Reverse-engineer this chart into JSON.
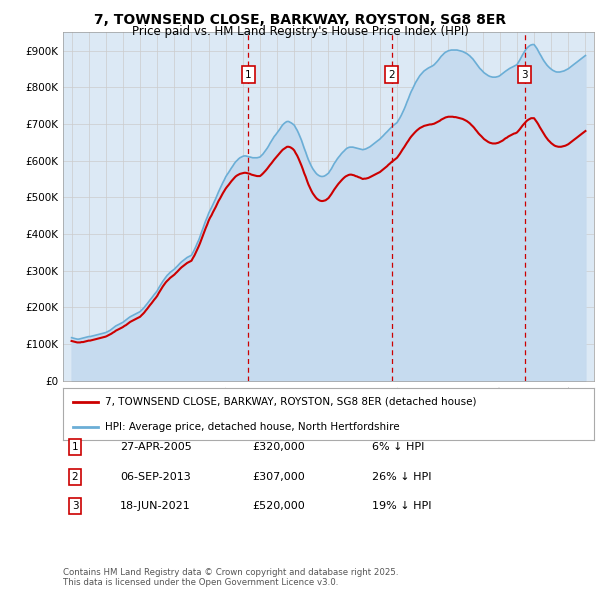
{
  "title": "7, TOWNSEND CLOSE, BARKWAY, ROYSTON, SG8 8ER",
  "subtitle": "Price paid vs. HM Land Registry's House Price Index (HPI)",
  "plot_bg_color": "#dce9f5",
  "ylim": [
    0,
    950000
  ],
  "yticks": [
    0,
    100000,
    200000,
    300000,
    400000,
    500000,
    600000,
    700000,
    800000,
    900000
  ],
  "ytick_labels": [
    "£0",
    "£100K",
    "£200K",
    "£300K",
    "£400K",
    "£500K",
    "£600K",
    "£700K",
    "£800K",
    "£900K"
  ],
  "legend_line1": "7, TOWNSEND CLOSE, BARKWAY, ROYSTON, SG8 8ER (detached house)",
  "legend_line2": "HPI: Average price, detached house, North Hertfordshire",
  "footnote": "Contains HM Land Registry data © Crown copyright and database right 2025.\nThis data is licensed under the Open Government Licence v3.0.",
  "transactions": [
    {
      "num": 1,
      "date": "27-APR-2005",
      "price": "£320,000",
      "pct": "6% ↓ HPI",
      "year": 2005.32
    },
    {
      "num": 2,
      "date": "06-SEP-2013",
      "price": "£307,000",
      "pct": "26% ↓ HPI",
      "year": 2013.68
    },
    {
      "num": 3,
      "date": "18-JUN-2021",
      "price": "£520,000",
      "pct": "19% ↓ HPI",
      "year": 2021.46
    }
  ],
  "hpi_x": [
    1995.0,
    1995.08,
    1995.17,
    1995.25,
    1995.33,
    1995.42,
    1995.5,
    1995.58,
    1995.67,
    1995.75,
    1995.83,
    1995.92,
    1996.0,
    1996.08,
    1996.17,
    1996.25,
    1996.33,
    1996.42,
    1996.5,
    1996.58,
    1996.67,
    1996.75,
    1996.83,
    1996.92,
    1997.0,
    1997.08,
    1997.17,
    1997.25,
    1997.33,
    1997.42,
    1997.5,
    1997.58,
    1997.67,
    1997.75,
    1997.83,
    1997.92,
    1998.0,
    1998.08,
    1998.17,
    1998.25,
    1998.33,
    1998.42,
    1998.5,
    1998.58,
    1998.67,
    1998.75,
    1998.83,
    1998.92,
    1999.0,
    1999.08,
    1999.17,
    1999.25,
    1999.33,
    1999.42,
    1999.5,
    1999.58,
    1999.67,
    1999.75,
    1999.83,
    1999.92,
    2000.0,
    2000.08,
    2000.17,
    2000.25,
    2000.33,
    2000.42,
    2000.5,
    2000.58,
    2000.67,
    2000.75,
    2000.83,
    2000.92,
    2001.0,
    2001.08,
    2001.17,
    2001.25,
    2001.33,
    2001.42,
    2001.5,
    2001.58,
    2001.67,
    2001.75,
    2001.83,
    2001.92,
    2002.0,
    2002.08,
    2002.17,
    2002.25,
    2002.33,
    2002.42,
    2002.5,
    2002.58,
    2002.67,
    2002.75,
    2002.83,
    2002.92,
    2003.0,
    2003.08,
    2003.17,
    2003.25,
    2003.33,
    2003.42,
    2003.5,
    2003.58,
    2003.67,
    2003.75,
    2003.83,
    2003.92,
    2004.0,
    2004.08,
    2004.17,
    2004.25,
    2004.33,
    2004.42,
    2004.5,
    2004.58,
    2004.67,
    2004.75,
    2004.83,
    2004.92,
    2005.0,
    2005.08,
    2005.17,
    2005.25,
    2005.33,
    2005.42,
    2005.5,
    2005.58,
    2005.67,
    2005.75,
    2005.83,
    2005.92,
    2006.0,
    2006.08,
    2006.17,
    2006.25,
    2006.33,
    2006.42,
    2006.5,
    2006.58,
    2006.67,
    2006.75,
    2006.83,
    2006.92,
    2007.0,
    2007.08,
    2007.17,
    2007.25,
    2007.33,
    2007.42,
    2007.5,
    2007.58,
    2007.67,
    2007.75,
    2007.83,
    2007.92,
    2008.0,
    2008.08,
    2008.17,
    2008.25,
    2008.33,
    2008.42,
    2008.5,
    2008.58,
    2008.67,
    2008.75,
    2008.83,
    2008.92,
    2009.0,
    2009.08,
    2009.17,
    2009.25,
    2009.33,
    2009.42,
    2009.5,
    2009.58,
    2009.67,
    2009.75,
    2009.83,
    2009.92,
    2010.0,
    2010.08,
    2010.17,
    2010.25,
    2010.33,
    2010.42,
    2010.5,
    2010.58,
    2010.67,
    2010.75,
    2010.83,
    2010.92,
    2011.0,
    2011.08,
    2011.17,
    2011.25,
    2011.33,
    2011.42,
    2011.5,
    2011.58,
    2011.67,
    2011.75,
    2011.83,
    2011.92,
    2012.0,
    2012.08,
    2012.17,
    2012.25,
    2012.33,
    2012.42,
    2012.5,
    2012.58,
    2012.67,
    2012.75,
    2012.83,
    2012.92,
    2013.0,
    2013.08,
    2013.17,
    2013.25,
    2013.33,
    2013.42,
    2013.5,
    2013.58,
    2013.67,
    2013.75,
    2013.83,
    2013.92,
    2014.0,
    2014.08,
    2014.17,
    2014.25,
    2014.33,
    2014.42,
    2014.5,
    2014.58,
    2014.67,
    2014.75,
    2014.83,
    2014.92,
    2015.0,
    2015.08,
    2015.17,
    2015.25,
    2015.33,
    2015.42,
    2015.5,
    2015.58,
    2015.67,
    2015.75,
    2015.83,
    2015.92,
    2016.0,
    2016.08,
    2016.17,
    2016.25,
    2016.33,
    2016.42,
    2016.5,
    2016.58,
    2016.67,
    2016.75,
    2016.83,
    2016.92,
    2017.0,
    2017.08,
    2017.17,
    2017.25,
    2017.33,
    2017.42,
    2017.5,
    2017.58,
    2017.67,
    2017.75,
    2017.83,
    2017.92,
    2018.0,
    2018.08,
    2018.17,
    2018.25,
    2018.33,
    2018.42,
    2018.5,
    2018.58,
    2018.67,
    2018.75,
    2018.83,
    2018.92,
    2019.0,
    2019.08,
    2019.17,
    2019.25,
    2019.33,
    2019.42,
    2019.5,
    2019.58,
    2019.67,
    2019.75,
    2019.83,
    2019.92,
    2020.0,
    2020.08,
    2020.17,
    2020.25,
    2020.33,
    2020.42,
    2020.5,
    2020.58,
    2020.67,
    2020.75,
    2020.83,
    2020.92,
    2021.0,
    2021.08,
    2021.17,
    2021.25,
    2021.33,
    2021.42,
    2021.5,
    2021.58,
    2021.67,
    2021.75,
    2021.83,
    2021.92,
    2022.0,
    2022.08,
    2022.17,
    2022.25,
    2022.33,
    2022.42,
    2022.5,
    2022.58,
    2022.67,
    2022.75,
    2022.83,
    2022.92,
    2023.0,
    2023.08,
    2023.17,
    2023.25,
    2023.33,
    2023.42,
    2023.5,
    2023.58,
    2023.67,
    2023.75,
    2023.83,
    2023.92,
    2024.0,
    2024.08,
    2024.17,
    2024.25,
    2024.33,
    2024.42,
    2024.5,
    2024.58,
    2024.67,
    2024.75,
    2024.83,
    2024.92,
    2025.0
  ],
  "hpi_y": [
    117000,
    116000,
    115000,
    114000,
    113000,
    113000,
    114000,
    115000,
    116000,
    117000,
    118000,
    119000,
    120000,
    120000,
    121000,
    122000,
    123000,
    124000,
    125000,
    126000,
    127000,
    128000,
    129000,
    130000,
    131000,
    133000,
    135000,
    137000,
    140000,
    143000,
    146000,
    149000,
    151000,
    153000,
    155000,
    157000,
    159000,
    162000,
    165000,
    168000,
    171000,
    174000,
    176000,
    178000,
    180000,
    182000,
    184000,
    186000,
    188000,
    192000,
    196000,
    200000,
    205000,
    210000,
    215000,
    220000,
    225000,
    230000,
    235000,
    240000,
    245000,
    252000,
    259000,
    265000,
    271000,
    277000,
    282000,
    287000,
    291000,
    295000,
    298000,
    301000,
    304000,
    308000,
    312000,
    316000,
    320000,
    324000,
    327000,
    330000,
    333000,
    336000,
    338000,
    340000,
    342000,
    349000,
    357000,
    365000,
    374000,
    383000,
    393000,
    404000,
    415000,
    426000,
    436000,
    446000,
    456000,
    464000,
    472000,
    480000,
    488000,
    497000,
    506000,
    515000,
    524000,
    532000,
    540000,
    548000,
    556000,
    562000,
    568000,
    574000,
    580000,
    586000,
    592000,
    597000,
    601000,
    605000,
    608000,
    610000,
    612000,
    613000,
    613000,
    612000,
    611000,
    610000,
    609000,
    608000,
    608000,
    608000,
    608000,
    609000,
    610000,
    614000,
    618000,
    623000,
    628000,
    634000,
    640000,
    647000,
    654000,
    660000,
    666000,
    671000,
    676000,
    681000,
    687000,
    693000,
    698000,
    702000,
    705000,
    707000,
    707000,
    705000,
    703000,
    700000,
    697000,
    690000,
    683000,
    675000,
    666000,
    656000,
    645000,
    634000,
    623000,
    612000,
    602000,
    593000,
    585000,
    578000,
    572000,
    567000,
    563000,
    560000,
    558000,
    557000,
    557000,
    558000,
    560000,
    563000,
    566000,
    572000,
    578000,
    585000,
    592000,
    598000,
    604000,
    609000,
    614000,
    619000,
    623000,
    627000,
    631000,
    634000,
    636000,
    637000,
    637000,
    637000,
    636000,
    635000,
    634000,
    633000,
    632000,
    631000,
    630000,
    631000,
    632000,
    634000,
    636000,
    638000,
    641000,
    644000,
    647000,
    650000,
    653000,
    656000,
    659000,
    663000,
    667000,
    671000,
    675000,
    679000,
    683000,
    687000,
    691000,
    695000,
    698000,
    701000,
    704000,
    710000,
    717000,
    724000,
    732000,
    741000,
    750000,
    760000,
    770000,
    780000,
    789000,
    797000,
    805000,
    813000,
    820000,
    826000,
    832000,
    837000,
    841000,
    845000,
    848000,
    851000,
    853000,
    855000,
    857000,
    859000,
    862000,
    866000,
    870000,
    875000,
    880000,
    885000,
    889000,
    893000,
    896000,
    898000,
    900000,
    901000,
    902000,
    902000,
    902000,
    902000,
    902000,
    901000,
    900000,
    899000,
    898000,
    896000,
    894000,
    892000,
    889000,
    886000,
    882000,
    878000,
    873000,
    868000,
    862000,
    857000,
    852000,
    848000,
    844000,
    840000,
    837000,
    834000,
    832000,
    830000,
    829000,
    828000,
    828000,
    828000,
    829000,
    830000,
    832000,
    835000,
    838000,
    841000,
    844000,
    847000,
    850000,
    852000,
    854000,
    856000,
    858000,
    860000,
    862000,
    868000,
    875000,
    882000,
    889000,
    896000,
    902000,
    907000,
    911000,
    914000,
    916000,
    917000,
    917000,
    912000,
    906000,
    899000,
    892000,
    885000,
    878000,
    872000,
    866000,
    861000,
    857000,
    853000,
    850000,
    847000,
    845000,
    843000,
    842000,
    842000,
    842000,
    843000,
    844000,
    845000,
    847000,
    849000,
    851000,
    854000,
    857000,
    860000,
    863000,
    866000,
    869000,
    872000,
    875000,
    878000,
    881000,
    884000,
    887000
  ],
  "price_x": [
    1995.0,
    1995.08,
    1995.17,
    1995.25,
    1995.33,
    1995.42,
    1995.5,
    1995.58,
    1995.67,
    1995.75,
    1995.83,
    1995.92,
    1996.0,
    1996.08,
    1996.17,
    1996.25,
    1996.33,
    1996.42,
    1996.5,
    1996.58,
    1996.67,
    1996.75,
    1996.83,
    1996.92,
    1997.0,
    1997.08,
    1997.17,
    1997.25,
    1997.33,
    1997.42,
    1997.5,
    1997.58,
    1997.67,
    1997.75,
    1997.83,
    1997.92,
    1998.0,
    1998.08,
    1998.17,
    1998.25,
    1998.33,
    1998.42,
    1998.5,
    1998.58,
    1998.67,
    1998.75,
    1998.83,
    1998.92,
    1999.0,
    1999.08,
    1999.17,
    1999.25,
    1999.33,
    1999.42,
    1999.5,
    1999.58,
    1999.67,
    1999.75,
    1999.83,
    1999.92,
    2000.0,
    2000.08,
    2000.17,
    2000.25,
    2000.33,
    2000.42,
    2000.5,
    2000.58,
    2000.67,
    2000.75,
    2000.83,
    2000.92,
    2001.0,
    2001.08,
    2001.17,
    2001.25,
    2001.33,
    2001.42,
    2001.5,
    2001.58,
    2001.67,
    2001.75,
    2001.83,
    2001.92,
    2002.0,
    2002.08,
    2002.17,
    2002.25,
    2002.33,
    2002.42,
    2002.5,
    2002.58,
    2002.67,
    2002.75,
    2002.83,
    2002.92,
    2003.0,
    2003.08,
    2003.17,
    2003.25,
    2003.33,
    2003.42,
    2003.5,
    2003.58,
    2003.67,
    2003.75,
    2003.83,
    2003.92,
    2004.0,
    2004.08,
    2004.17,
    2004.25,
    2004.33,
    2004.42,
    2004.5,
    2004.58,
    2004.67,
    2004.75,
    2004.83,
    2004.92,
    2005.0,
    2005.08,
    2005.17,
    2005.25,
    2005.33,
    2005.42,
    2005.5,
    2005.58,
    2005.67,
    2005.75,
    2005.83,
    2005.92,
    2006.0,
    2006.08,
    2006.17,
    2006.25,
    2006.33,
    2006.42,
    2006.5,
    2006.58,
    2006.67,
    2006.75,
    2006.83,
    2006.92,
    2007.0,
    2007.08,
    2007.17,
    2007.25,
    2007.33,
    2007.42,
    2007.5,
    2007.58,
    2007.67,
    2007.75,
    2007.83,
    2007.92,
    2008.0,
    2008.08,
    2008.17,
    2008.25,
    2008.33,
    2008.42,
    2008.5,
    2008.58,
    2008.67,
    2008.75,
    2008.83,
    2008.92,
    2009.0,
    2009.08,
    2009.17,
    2009.25,
    2009.33,
    2009.42,
    2009.5,
    2009.58,
    2009.67,
    2009.75,
    2009.83,
    2009.92,
    2010.0,
    2010.08,
    2010.17,
    2010.25,
    2010.33,
    2010.42,
    2010.5,
    2010.58,
    2010.67,
    2010.75,
    2010.83,
    2010.92,
    2011.0,
    2011.08,
    2011.17,
    2011.25,
    2011.33,
    2011.42,
    2011.5,
    2011.58,
    2011.67,
    2011.75,
    2011.83,
    2011.92,
    2012.0,
    2012.08,
    2012.17,
    2012.25,
    2012.33,
    2012.42,
    2012.5,
    2012.58,
    2012.67,
    2012.75,
    2012.83,
    2012.92,
    2013.0,
    2013.08,
    2013.17,
    2013.25,
    2013.33,
    2013.42,
    2013.5,
    2013.58,
    2013.67,
    2013.75,
    2013.83,
    2013.92,
    2014.0,
    2014.08,
    2014.17,
    2014.25,
    2014.33,
    2014.42,
    2014.5,
    2014.58,
    2014.67,
    2014.75,
    2014.83,
    2014.92,
    2015.0,
    2015.08,
    2015.17,
    2015.25,
    2015.33,
    2015.42,
    2015.5,
    2015.58,
    2015.67,
    2015.75,
    2015.83,
    2015.92,
    2016.0,
    2016.08,
    2016.17,
    2016.25,
    2016.33,
    2016.42,
    2016.5,
    2016.58,
    2016.67,
    2016.75,
    2016.83,
    2016.92,
    2017.0,
    2017.08,
    2017.17,
    2017.25,
    2017.33,
    2017.42,
    2017.5,
    2017.58,
    2017.67,
    2017.75,
    2017.83,
    2017.92,
    2018.0,
    2018.08,
    2018.17,
    2018.25,
    2018.33,
    2018.42,
    2018.5,
    2018.58,
    2018.67,
    2018.75,
    2018.83,
    2018.92,
    2019.0,
    2019.08,
    2019.17,
    2019.25,
    2019.33,
    2019.42,
    2019.5,
    2019.58,
    2019.67,
    2019.75,
    2019.83,
    2019.92,
    2020.0,
    2020.08,
    2020.17,
    2020.25,
    2020.33,
    2020.42,
    2020.5,
    2020.58,
    2020.67,
    2020.75,
    2020.83,
    2020.92,
    2021.0,
    2021.08,
    2021.17,
    2021.25,
    2021.33,
    2021.42,
    2021.5,
    2021.58,
    2021.67,
    2021.75,
    2021.83,
    2021.92,
    2022.0,
    2022.08,
    2022.17,
    2022.25,
    2022.33,
    2022.42,
    2022.5,
    2022.58,
    2022.67,
    2022.75,
    2022.83,
    2022.92,
    2023.0,
    2023.08,
    2023.17,
    2023.25,
    2023.33,
    2023.42,
    2023.5,
    2023.58,
    2023.67,
    2023.75,
    2023.83,
    2023.92,
    2024.0,
    2024.08,
    2024.17,
    2024.25,
    2024.33,
    2024.42,
    2024.5,
    2024.58,
    2024.67,
    2024.75,
    2024.83,
    2024.92,
    2025.0
  ],
  "price_y": [
    108000,
    107000,
    106000,
    105000,
    104000,
    104000,
    104000,
    105000,
    105000,
    106000,
    107000,
    108000,
    109000,
    109000,
    110000,
    111000,
    112000,
    113000,
    114000,
    115000,
    116000,
    117000,
    118000,
    119000,
    120000,
    122000,
    124000,
    126000,
    128000,
    131000,
    133000,
    136000,
    138000,
    140000,
    142000,
    144000,
    146000,
    149000,
    151000,
    154000,
    157000,
    160000,
    162000,
    164000,
    166000,
    168000,
    170000,
    172000,
    174000,
    178000,
    182000,
    186000,
    191000,
    196000,
    201000,
    206000,
    211000,
    216000,
    221000,
    226000,
    231000,
    238000,
    245000,
    251000,
    257000,
    263000,
    268000,
    272000,
    276000,
    280000,
    283000,
    286000,
    289000,
    293000,
    297000,
    301000,
    305000,
    309000,
    312000,
    315000,
    318000,
    321000,
    323000,
    325000,
    327000,
    334000,
    341000,
    349000,
    357000,
    366000,
    375000,
    385000,
    396000,
    406000,
    416000,
    426000,
    436000,
    444000,
    451000,
    459000,
    466000,
    474000,
    482000,
    490000,
    497000,
    504000,
    511000,
    518000,
    524000,
    529000,
    534000,
    539000,
    544000,
    549000,
    553000,
    557000,
    560000,
    562000,
    564000,
    565000,
    566000,
    567000,
    567000,
    566000,
    565000,
    564000,
    562000,
    561000,
    560000,
    559000,
    558000,
    558000,
    558000,
    561000,
    565000,
    569000,
    573000,
    578000,
    583000,
    588000,
    593000,
    598000,
    603000,
    608000,
    612000,
    617000,
    622000,
    626000,
    630000,
    633000,
    636000,
    638000,
    638000,
    637000,
    635000,
    632000,
    628000,
    621000,
    614000,
    606000,
    597000,
    587000,
    577000,
    566000,
    556000,
    545000,
    535000,
    526000,
    518000,
    511000,
    505000,
    500000,
    496000,
    493000,
    491000,
    490000,
    490000,
    491000,
    492000,
    495000,
    498000,
    503000,
    509000,
    515000,
    521000,
    527000,
    532000,
    537000,
    542000,
    546000,
    550000,
    554000,
    557000,
    559000,
    561000,
    562000,
    562000,
    561000,
    560000,
    558000,
    557000,
    555000,
    554000,
    552000,
    550000,
    551000,
    551000,
    552000,
    553000,
    555000,
    557000,
    559000,
    561000,
    563000,
    565000,
    567000,
    569000,
    572000,
    575000,
    578000,
    581000,
    585000,
    589000,
    592000,
    596000,
    599000,
    602000,
    605000,
    608000,
    613000,
    619000,
    625000,
    631000,
    637000,
    643000,
    649000,
    655000,
    661000,
    666000,
    671000,
    675000,
    679000,
    683000,
    686000,
    689000,
    691000,
    693000,
    695000,
    696000,
    697000,
    698000,
    699000,
    699000,
    700000,
    701000,
    703000,
    705000,
    707000,
    709000,
    712000,
    714000,
    716000,
    718000,
    719000,
    720000,
    720000,
    720000,
    720000,
    719000,
    719000,
    718000,
    717000,
    716000,
    715000,
    714000,
    712000,
    710000,
    708000,
    705000,
    702000,
    698000,
    694000,
    690000,
    685000,
    680000,
    675000,
    671000,
    667000,
    663000,
    659000,
    656000,
    653000,
    651000,
    649000,
    648000,
    647000,
    647000,
    647000,
    648000,
    649000,
    651000,
    653000,
    655000,
    658000,
    661000,
    663000,
    666000,
    668000,
    670000,
    672000,
    674000,
    675000,
    677000,
    681000,
    686000,
    691000,
    696000,
    701000,
    705000,
    709000,
    712000,
    714000,
    716000,
    716000,
    716000,
    711000,
    705000,
    699000,
    692000,
    685000,
    679000,
    672000,
    666000,
    661000,
    656000,
    652000,
    648000,
    645000,
    642000,
    640000,
    639000,
    638000,
    638000,
    638000,
    639000,
    640000,
    641000,
    643000,
    645000,
    648000,
    651000,
    654000,
    657000,
    660000,
    663000,
    666000,
    669000,
    672000,
    675000,
    678000,
    681000
  ],
  "hpi_color": "#6baed6",
  "hpi_fill_color": "#c6dbef",
  "price_color": "#cc0000",
  "vline_color": "#cc0000",
  "grid_color": "#cccccc",
  "xlim": [
    1994.5,
    2025.5
  ]
}
